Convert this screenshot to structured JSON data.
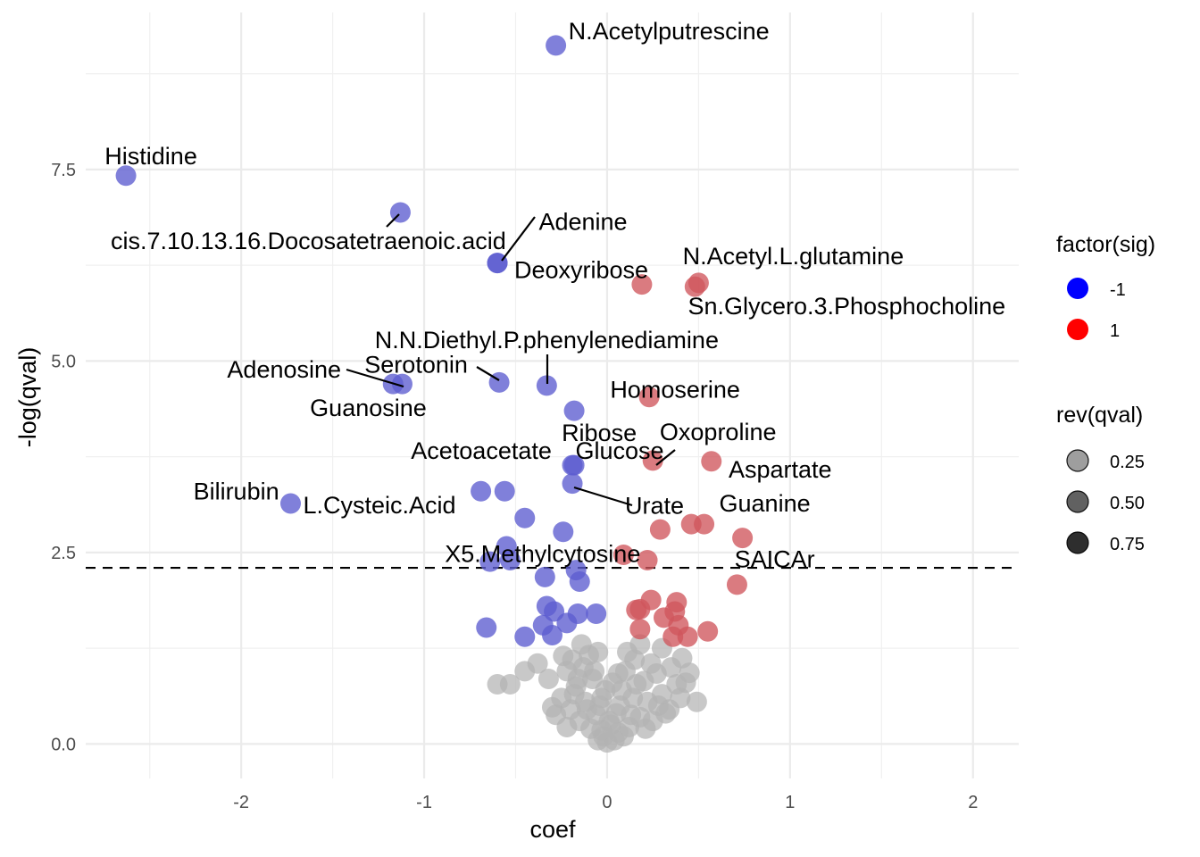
{
  "chart_data": {
    "type": "scatter",
    "xlabel": "coef",
    "ylabel": "-log(qval)",
    "xlim": [
      -2.85,
      2.25
    ],
    "ylim": [
      -0.45,
      9.55
    ],
    "x_ticks": [
      -2,
      -1,
      0,
      1,
      2
    ],
    "x_tick_labels": [
      "-2",
      "-1",
      "0",
      "1",
      "2"
    ],
    "y_ticks": [
      0,
      2.5,
      5,
      7.5
    ],
    "y_tick_labels": [
      "0.0",
      "2.5",
      "5.0",
      "7.5"
    ],
    "grid": true,
    "threshold_line": {
      "y": 2.3,
      "style": "dashed"
    },
    "legend": {
      "placement": "right",
      "color_title": "factor(sig)",
      "color_entries": [
        {
          "label": "-1",
          "color": "#0000ff"
        },
        {
          "label": "1",
          "color": "#ff0000"
        }
      ],
      "alpha_title": "rev(qval)",
      "alpha_entries": [
        {
          "label": "0.25",
          "alpha": 0.38
        },
        {
          "label": "0.50",
          "alpha": 0.62
        },
        {
          "label": "0.75",
          "alpha": 0.82
        }
      ]
    },
    "colors": {
      "down": "#0000ff",
      "up": "#ff0000",
      "ns": "#b3b3b3"
    },
    "labeled_points": [
      {
        "name": "N.Acetylputrescine",
        "x": -0.28,
        "y": 9.12,
        "sig": -1
      },
      {
        "name": "Histidine",
        "x": -2.63,
        "y": 7.42,
        "sig": -1
      },
      {
        "name": "cis.7.10.13.16.Docosatetraenoic.acid",
        "x": -1.13,
        "y": 6.94,
        "sig": -1
      },
      {
        "name": "Adenine",
        "x": -0.6,
        "y": 6.28,
        "sig": -1
      },
      {
        "name": "Deoxyribose",
        "x": -0.6,
        "y": 6.28,
        "sig": -1
      },
      {
        "name": "N.Acetyl.L.glutamine",
        "x": 0.5,
        "y": 6.02,
        "sig": 1
      },
      {
        "name": "Sn.Glycero.3.Phosphocholine",
        "x": 0.48,
        "y": 5.97,
        "sig": 1
      },
      {
        "name": "N.N.Diethyl.P.phenylenediamine",
        "x": -0.33,
        "y": 4.68,
        "sig": -1
      },
      {
        "name": "Serotonin",
        "x": -0.59,
        "y": 4.72,
        "sig": -1
      },
      {
        "name": "Adenosine",
        "x": -1.17,
        "y": 4.7,
        "sig": -1
      },
      {
        "name": "Guanosine",
        "x": -1.12,
        "y": 4.7,
        "sig": -1
      },
      {
        "name": "Homoserine",
        "x": 0.23,
        "y": 4.53,
        "sig": 1
      },
      {
        "name": "Ribose",
        "x": -0.18,
        "y": 4.35,
        "sig": -1
      },
      {
        "name": "Oxoproline",
        "x": 0.25,
        "y": 3.7,
        "sig": 1
      },
      {
        "name": "Aspartate",
        "x": 0.57,
        "y": 3.69,
        "sig": 1
      },
      {
        "name": "Acetoacetate",
        "x": -0.18,
        "y": 3.64,
        "sig": -1
      },
      {
        "name": "Glucose",
        "x": -0.19,
        "y": 3.64,
        "sig": -1
      },
      {
        "name": "Urate",
        "x": -0.19,
        "y": 3.4,
        "sig": -1
      },
      {
        "name": "L.Cysteic.Acid",
        "x": -1.73,
        "y": 3.14,
        "sig": -1
      },
      {
        "name": "Bilirubin",
        "x": -0.69,
        "y": 3.3,
        "sig": -1
      },
      {
        "name": "Guanine",
        "x": 0.53,
        "y": 2.87,
        "sig": 1
      },
      {
        "name": "X5.Methylcytosine",
        "x": -0.24,
        "y": 2.77,
        "sig": -1
      },
      {
        "name": "SAICAr",
        "x": 0.74,
        "y": 2.69,
        "sig": 1
      }
    ],
    "points": [
      {
        "x": 0.19,
        "y": 6.0,
        "sig": 1
      },
      {
        "x": -0.56,
        "y": 3.3,
        "sig": -1
      },
      {
        "x": 0.29,
        "y": 2.8,
        "sig": 1
      },
      {
        "x": 0.46,
        "y": 2.87,
        "sig": 1
      },
      {
        "x": -0.45,
        "y": 2.95,
        "sig": -1
      },
      {
        "x": -0.55,
        "y": 2.58,
        "sig": -1
      },
      {
        "x": -0.64,
        "y": 2.38,
        "sig": -1
      },
      {
        "x": -0.53,
        "y": 2.4,
        "sig": -1
      },
      {
        "x": 0.09,
        "y": 2.47,
        "sig": 1
      },
      {
        "x": 0.22,
        "y": 2.4,
        "sig": 1
      },
      {
        "x": 0.71,
        "y": 2.08,
        "sig": 1
      },
      {
        "x": -0.34,
        "y": 2.18,
        "sig": -1
      },
      {
        "x": -0.17,
        "y": 2.27,
        "sig": -1
      },
      {
        "x": -0.15,
        "y": 2.12,
        "sig": -1
      },
      {
        "x": -0.33,
        "y": 1.8,
        "sig": -1
      },
      {
        "x": -0.29,
        "y": 1.73,
        "sig": -1
      },
      {
        "x": -0.16,
        "y": 1.7,
        "sig": -1
      },
      {
        "x": -0.06,
        "y": 1.7,
        "sig": -1
      },
      {
        "x": -0.35,
        "y": 1.55,
        "sig": -1
      },
      {
        "x": -0.45,
        "y": 1.4,
        "sig": -1
      },
      {
        "x": -0.3,
        "y": 1.42,
        "sig": -1
      },
      {
        "x": -0.22,
        "y": 1.58,
        "sig": -1
      },
      {
        "x": -0.66,
        "y": 1.52,
        "sig": -1
      },
      {
        "x": 0.24,
        "y": 1.88,
        "sig": 1
      },
      {
        "x": 0.38,
        "y": 1.85,
        "sig": 1
      },
      {
        "x": 0.16,
        "y": 1.75,
        "sig": 1
      },
      {
        "x": 0.18,
        "y": 1.76,
        "sig": 1
      },
      {
        "x": 0.37,
        "y": 1.73,
        "sig": 1
      },
      {
        "x": 0.31,
        "y": 1.65,
        "sig": 1
      },
      {
        "x": 0.39,
        "y": 1.55,
        "sig": 1
      },
      {
        "x": 0.18,
        "y": 1.5,
        "sig": 1
      },
      {
        "x": 0.36,
        "y": 1.4,
        "sig": 1
      },
      {
        "x": 0.44,
        "y": 1.4,
        "sig": 1
      },
      {
        "x": 0.55,
        "y": 1.47,
        "sig": 1
      },
      {
        "x": -0.6,
        "y": 0.78,
        "sig": 0
      },
      {
        "x": -0.53,
        "y": 0.78,
        "sig": 0
      },
      {
        "x": -0.45,
        "y": 0.95,
        "sig": 0
      },
      {
        "x": -0.38,
        "y": 1.05,
        "sig": 0
      },
      {
        "x": -0.32,
        "y": 0.85,
        "sig": 0
      },
      {
        "x": -0.24,
        "y": 1.15,
        "sig": 0
      },
      {
        "x": -0.14,
        "y": 1.3,
        "sig": 0
      },
      {
        "x": -0.1,
        "y": 1.16,
        "sig": 0
      },
      {
        "x": -0.22,
        "y": 0.95,
        "sig": 0
      },
      {
        "x": -0.17,
        "y": 0.75,
        "sig": 0
      },
      {
        "x": -0.08,
        "y": 0.85,
        "sig": 0
      },
      {
        "x": -0.03,
        "y": 0.6,
        "sig": 0
      },
      {
        "x": -0.12,
        "y": 0.55,
        "sig": 0
      },
      {
        "x": -0.2,
        "y": 0.45,
        "sig": 0
      },
      {
        "x": -0.3,
        "y": 0.48,
        "sig": 0
      },
      {
        "x": -0.06,
        "y": 0.38,
        "sig": 0
      },
      {
        "x": 0.02,
        "y": 0.25,
        "sig": 0
      },
      {
        "x": -0.02,
        "y": 0.1,
        "sig": 0
      },
      {
        "x": 0.0,
        "y": 0.02,
        "sig": 0
      },
      {
        "x": 0.05,
        "y": 0.4,
        "sig": 0
      },
      {
        "x": 0.08,
        "y": 0.7,
        "sig": 0
      },
      {
        "x": 0.06,
        "y": 0.92,
        "sig": 0
      },
      {
        "x": 0.11,
        "y": 1.2,
        "sig": 0
      },
      {
        "x": 0.18,
        "y": 1.3,
        "sig": 0
      },
      {
        "x": 0.15,
        "y": 1.1,
        "sig": 0
      },
      {
        "x": 0.24,
        "y": 1.05,
        "sig": 0
      },
      {
        "x": 0.27,
        "y": 0.92,
        "sig": 0
      },
      {
        "x": 0.2,
        "y": 0.82,
        "sig": 0
      },
      {
        "x": 0.14,
        "y": 0.6,
        "sig": 0
      },
      {
        "x": 0.22,
        "y": 0.55,
        "sig": 0
      },
      {
        "x": 0.3,
        "y": 0.65,
        "sig": 0
      },
      {
        "x": 0.34,
        "y": 0.45,
        "sig": 0
      },
      {
        "x": 0.4,
        "y": 0.6,
        "sig": 0
      },
      {
        "x": 0.43,
        "y": 0.8,
        "sig": 0
      },
      {
        "x": 0.45,
        "y": 0.93,
        "sig": 0
      },
      {
        "x": 0.41,
        "y": 1.12,
        "sig": 0
      },
      {
        "x": 0.3,
        "y": 1.25,
        "sig": 0
      },
      {
        "x": 0.32,
        "y": 0.4,
        "sig": 0
      },
      {
        "x": 0.25,
        "y": 0.3,
        "sig": 0
      },
      {
        "x": 0.18,
        "y": 0.35,
        "sig": 0
      },
      {
        "x": 0.12,
        "y": 0.22,
        "sig": 0
      },
      {
        "x": 0.09,
        "y": 0.1,
        "sig": 0
      },
      {
        "x": 0.04,
        "y": 0.05,
        "sig": 0
      },
      {
        "x": -0.05,
        "y": 0.05,
        "sig": 0
      },
      {
        "x": -0.09,
        "y": 0.2,
        "sig": 0
      },
      {
        "x": -0.15,
        "y": 0.3,
        "sig": 0
      },
      {
        "x": -0.18,
        "y": 0.65,
        "sig": 0
      },
      {
        "x": -0.25,
        "y": 0.6,
        "sig": 0
      },
      {
        "x": -0.13,
        "y": 1.0,
        "sig": 0
      },
      {
        "x": -0.19,
        "y": 1.1,
        "sig": 0
      },
      {
        "x": -0.05,
        "y": 1.2,
        "sig": 0
      },
      {
        "x": 0.07,
        "y": 0.5,
        "sig": 0
      },
      {
        "x": 0.03,
        "y": 0.8,
        "sig": 0
      },
      {
        "x": -0.01,
        "y": 0.7,
        "sig": 0
      },
      {
        "x": 0.1,
        "y": 0.95,
        "sig": 0
      },
      {
        "x": -0.07,
        "y": 0.95,
        "sig": 0
      },
      {
        "x": 0.13,
        "y": 0.38,
        "sig": 0
      },
      {
        "x": -0.11,
        "y": 0.45,
        "sig": 0
      },
      {
        "x": 0.21,
        "y": 0.2,
        "sig": 0
      },
      {
        "x": -0.22,
        "y": 0.22,
        "sig": 0
      },
      {
        "x": 0.28,
        "y": 0.5,
        "sig": 0
      },
      {
        "x": -0.28,
        "y": 0.38,
        "sig": 0
      },
      {
        "x": 0.01,
        "y": 0.3,
        "sig": 0
      },
      {
        "x": -0.04,
        "y": 0.5,
        "sig": 0
      },
      {
        "x": 0.16,
        "y": 0.78,
        "sig": 0
      },
      {
        "x": -0.16,
        "y": 0.85,
        "sig": 0
      },
      {
        "x": 0.38,
        "y": 0.78,
        "sig": 0
      },
      {
        "x": 0.49,
        "y": 0.55,
        "sig": 0
      },
      {
        "x": 0.35,
        "y": 1.0,
        "sig": 0
      },
      {
        "x": 0.06,
        "y": 0.15,
        "sig": 0
      },
      {
        "x": -0.03,
        "y": 0.18,
        "sig": 0
      }
    ]
  }
}
